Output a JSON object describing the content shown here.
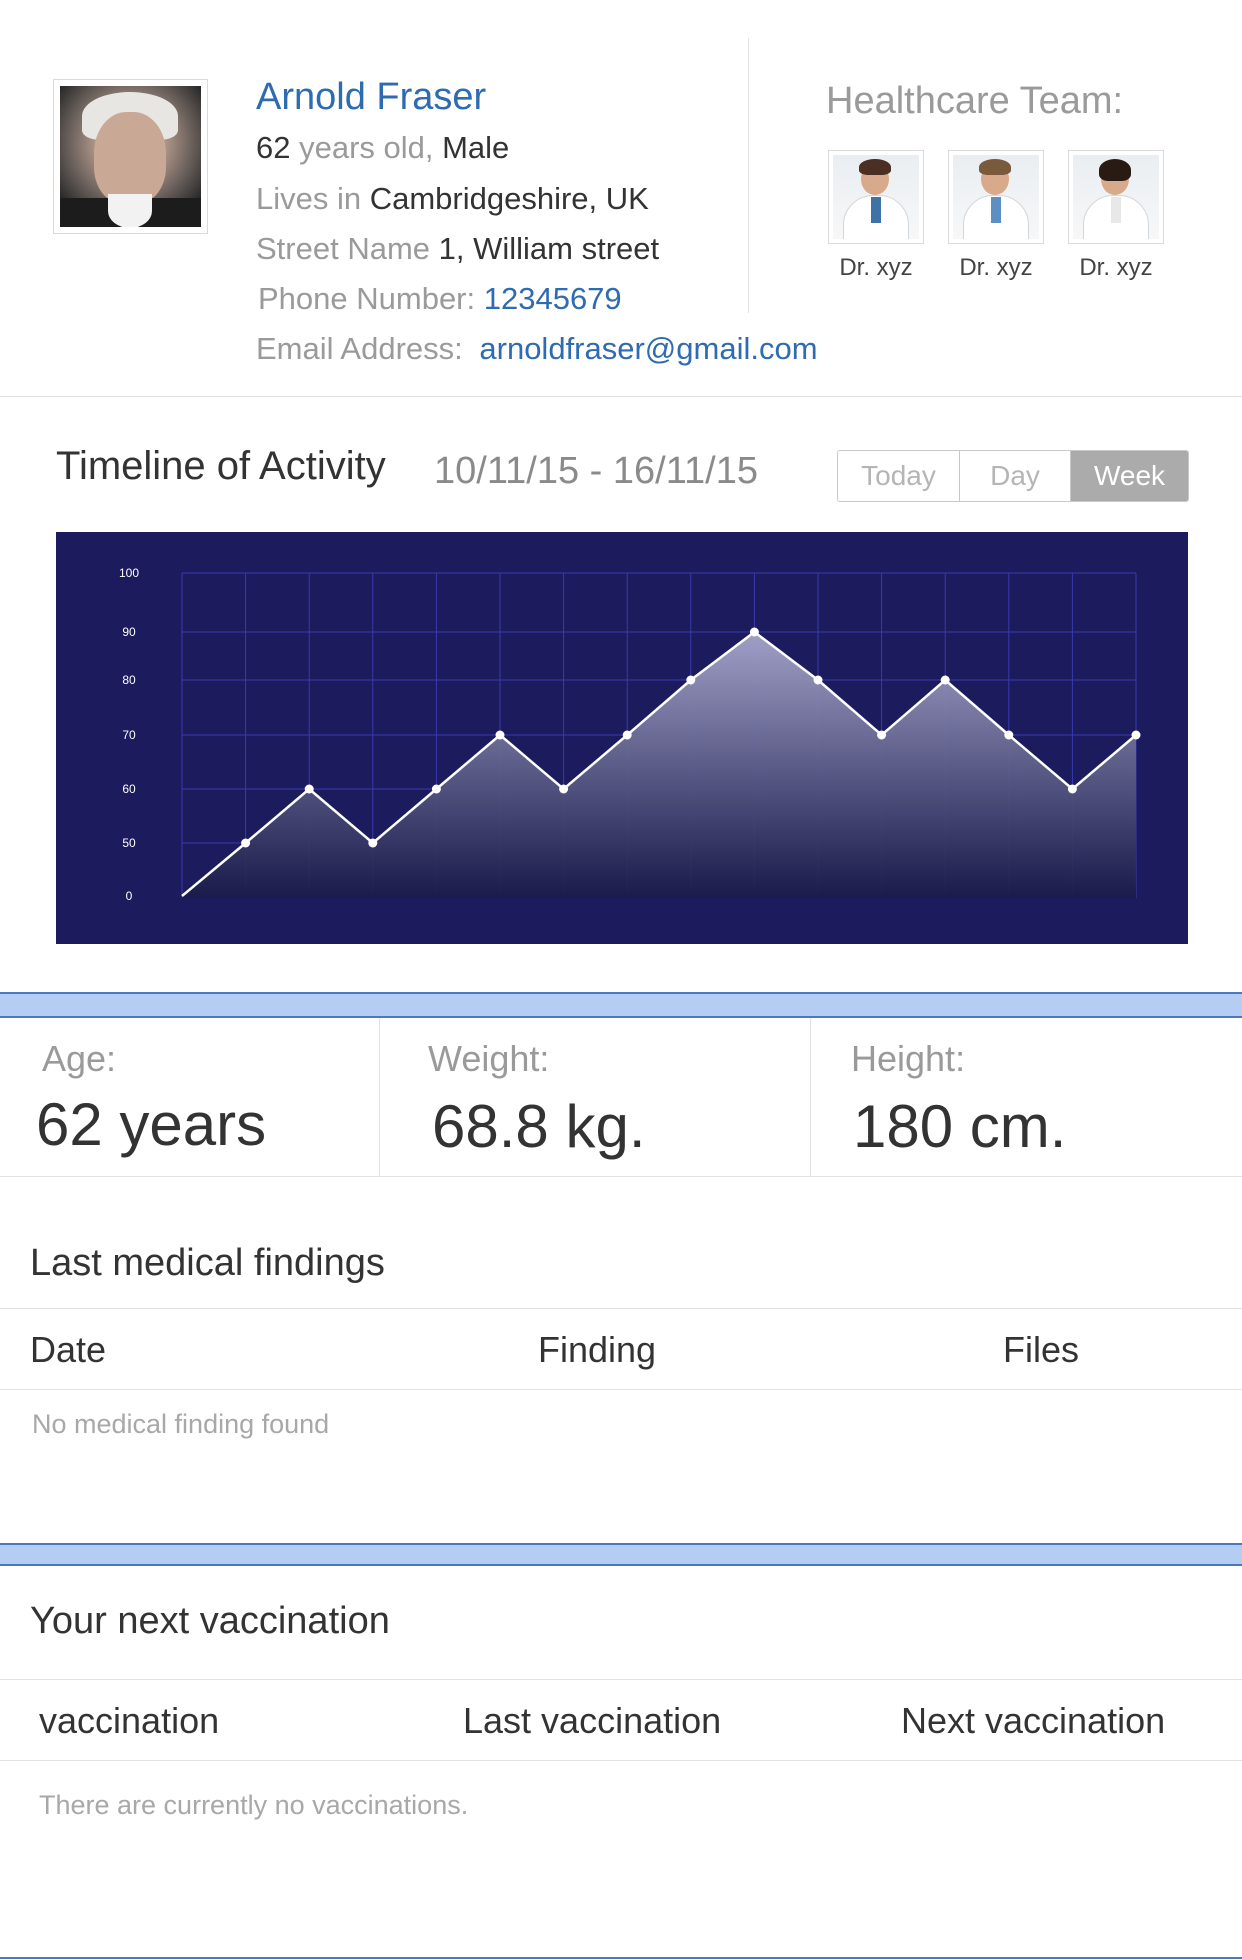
{
  "profile": {
    "name": "Arnold Fraser",
    "age_num": "62",
    "age_text": " years old, ",
    "gender": "Male",
    "lives_label": "Lives in ",
    "location": "Cambridgeshire, UK",
    "street_label": "Street Name ",
    "street": "1, William street",
    "phone_label": "Phone Number: ",
    "phone": "12345679",
    "email_label": "Email Address:",
    "email": "arnoldfraser@gmail.com"
  },
  "team": {
    "title": "Healthcare Team:",
    "doctors": [
      {
        "name": "Dr. xyz"
      },
      {
        "name": "Dr. xyz"
      },
      {
        "name": "Dr. xyz"
      }
    ]
  },
  "timeline": {
    "title": "Timeline of Activity",
    "range": "10/11/15 - 16/11/15",
    "tabs": [
      "Today",
      "Day",
      "Week"
    ],
    "active_tab": "Week"
  },
  "chart_data": {
    "type": "area",
    "x": [
      0,
      1,
      2,
      3,
      4,
      5,
      6,
      7,
      8,
      9,
      10,
      11,
      12,
      13,
      14,
      15
    ],
    "values": [
      0,
      50,
      60,
      50,
      60,
      70,
      60,
      70,
      80,
      90,
      80,
      70,
      80,
      70,
      60,
      70
    ],
    "y_ticks": [
      "100",
      "90",
      "80",
      "70",
      "60",
      "50",
      "0"
    ],
    "colors": {
      "background": "#1b1b5e",
      "grid": "#3a3ab0",
      "line": "#ffffff"
    }
  },
  "stats": {
    "age_label": "Age:",
    "age_value": "62 years",
    "weight_label": "Weight:",
    "weight_value": "68.8 kg.",
    "height_label": "Height:",
    "height_value": "180 cm."
  },
  "findings": {
    "title": "Last medical findings",
    "columns": [
      "Date",
      "Finding",
      "Files"
    ],
    "empty": "No medical finding found"
  },
  "vaccination": {
    "title": "Your next vaccination",
    "columns": [
      "vaccination",
      "Last vaccination",
      "Next vaccination"
    ],
    "empty": "There are currently no vaccinations."
  },
  "colors": {
    "accent": "#2e6bb0",
    "band": "#b3cdf3",
    "band_border": "#4c78c2"
  }
}
